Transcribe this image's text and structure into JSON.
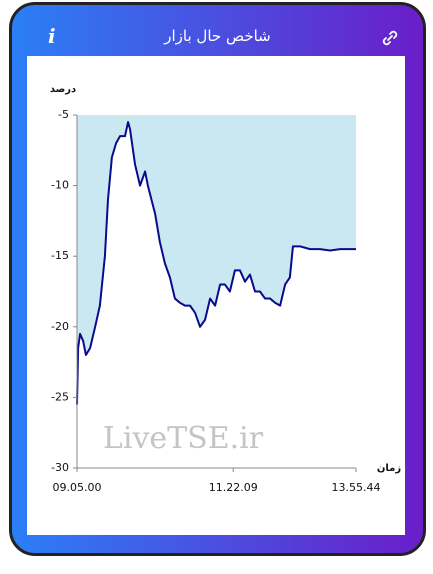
{
  "chart_data": {
    "type": "line",
    "title": "شاخص حال بازار",
    "icon_label": "i",
    "y_label": "درصد",
    "x_label": "زمان",
    "watermark": "LiveTSE.ir",
    "x": [
      0,
      0.4,
      1.1,
      2.2,
      3.2,
      4.7,
      6.5,
      8.2,
      10,
      11.1,
      12.5,
      14,
      15.4,
      17.2,
      18.3,
      19,
      20.8,
      22.6,
      24.4,
      25.4,
      28,
      29.7,
      31.5,
      33.3,
      35.1,
      36.9,
      38.7,
      40.5,
      42.3,
      44.1,
      45.9,
      47.7,
      49.5,
      51.3,
      53,
      54.8,
      56.6,
      58.4,
      60.2,
      62,
      63.8,
      65.6,
      67.4,
      69.2,
      71,
      72.8,
      74.6,
      76.3,
      77.4,
      79.9,
      83.5,
      87.1,
      90.7,
      94.3,
      97.8,
      100
    ],
    "series": [
      {
        "name": "شاخص",
        "color": "#0a0a8c",
        "fill": "#c9e8f1",
        "values": [
          -25.5,
          -21.5,
          -20.5,
          -21,
          -22,
          -21.5,
          -20,
          -18.5,
          -15,
          -11,
          -8,
          -7,
          -6.5,
          -6.5,
          -5.5,
          -6,
          -8.5,
          -10,
          -9,
          -10,
          -12,
          -14,
          -15.5,
          -16.5,
          -18,
          -18.3,
          -18.5,
          -18.5,
          -19,
          -20,
          -19.5,
          -18,
          -18.5,
          -17,
          -17,
          -17.5,
          -16,
          -16,
          -16.8,
          -16.3,
          -17.5,
          -17.5,
          -18,
          -18,
          -18.3,
          -18.5,
          -17,
          -16.5,
          -14.3,
          -14.3,
          -14.5,
          -14.5,
          -14.6,
          -14.5,
          -14.5,
          -14.5
        ]
      }
    ],
    "xlim": [
      0,
      100
    ],
    "xticks": [
      {
        "value": 0,
        "label": "09.05.00"
      },
      {
        "value": 56,
        "label": "11.22.09"
      },
      {
        "value": 100,
        "label": "13.55.44"
      }
    ],
    "ylim": [
      -30,
      -5
    ],
    "yticks": [
      -30,
      -25,
      -20,
      -15,
      -10,
      -5
    ],
    "grid": false
  }
}
